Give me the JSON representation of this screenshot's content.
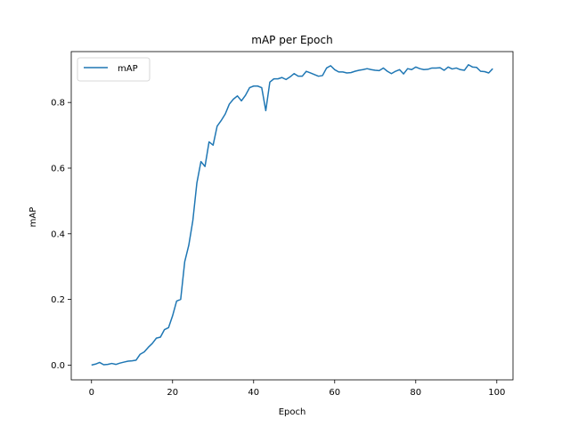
{
  "chart_data": {
    "type": "line",
    "title": "mAP per Epoch",
    "xlabel": "Epoch",
    "ylabel": "mAP",
    "xlim": [
      -5,
      104
    ],
    "ylim": [
      -0.045,
      0.955
    ],
    "xticks": [
      0,
      20,
      40,
      60,
      80,
      100
    ],
    "xtick_labels": [
      "0",
      "20",
      "40",
      "60",
      "80",
      "100"
    ],
    "yticks": [
      0.0,
      0.2,
      0.4,
      0.6,
      0.8
    ],
    "ytick_labels": [
      "0.0",
      "0.2",
      "0.4",
      "0.6",
      "0.8"
    ],
    "grid": false,
    "legend": {
      "position": "upper-left"
    },
    "series": [
      {
        "name": "mAP",
        "color": "#1f77b4",
        "x": [
          0,
          1,
          2,
          3,
          4,
          5,
          6,
          7,
          8,
          9,
          10,
          11,
          12,
          13,
          14,
          15,
          16,
          17,
          18,
          19,
          20,
          21,
          22,
          23,
          24,
          25,
          26,
          27,
          28,
          29,
          30,
          31,
          32,
          33,
          34,
          35,
          36,
          37,
          38,
          39,
          40,
          41,
          42,
          43,
          44,
          45,
          46,
          47,
          48,
          49,
          50,
          51,
          52,
          53,
          54,
          55,
          56,
          57,
          58,
          59,
          60,
          61,
          62,
          63,
          64,
          65,
          66,
          67,
          68,
          69,
          70,
          71,
          72,
          73,
          74,
          75,
          76,
          77,
          78,
          79,
          80,
          81,
          82,
          83,
          84,
          85,
          86,
          87,
          88,
          89,
          90,
          91,
          92,
          93,
          94,
          95,
          96,
          97,
          98,
          99
        ],
        "values": [
          0.0,
          0.003,
          0.008,
          0.001,
          0.002,
          0.005,
          0.002,
          0.006,
          0.009,
          0.012,
          0.013,
          0.015,
          0.033,
          0.04,
          0.054,
          0.066,
          0.082,
          0.085,
          0.108,
          0.114,
          0.15,
          0.195,
          0.2,
          0.315,
          0.365,
          0.44,
          0.555,
          0.62,
          0.605,
          0.68,
          0.67,
          0.728,
          0.745,
          0.765,
          0.795,
          0.81,
          0.82,
          0.805,
          0.822,
          0.845,
          0.85,
          0.85,
          0.845,
          0.775,
          0.862,
          0.872,
          0.872,
          0.876,
          0.87,
          0.878,
          0.888,
          0.88,
          0.88,
          0.895,
          0.89,
          0.885,
          0.88,
          0.882,
          0.905,
          0.912,
          0.9,
          0.893,
          0.893,
          0.89,
          0.891,
          0.895,
          0.898,
          0.9,
          0.903,
          0.9,
          0.898,
          0.897,
          0.905,
          0.895,
          0.888,
          0.895,
          0.9,
          0.887,
          0.903,
          0.9,
          0.908,
          0.903,
          0.9,
          0.901,
          0.905,
          0.905,
          0.906,
          0.898,
          0.908,
          0.902,
          0.905,
          0.9,
          0.898,
          0.915,
          0.908,
          0.907,
          0.895,
          0.894,
          0.89,
          0.903
        ]
      }
    ]
  }
}
